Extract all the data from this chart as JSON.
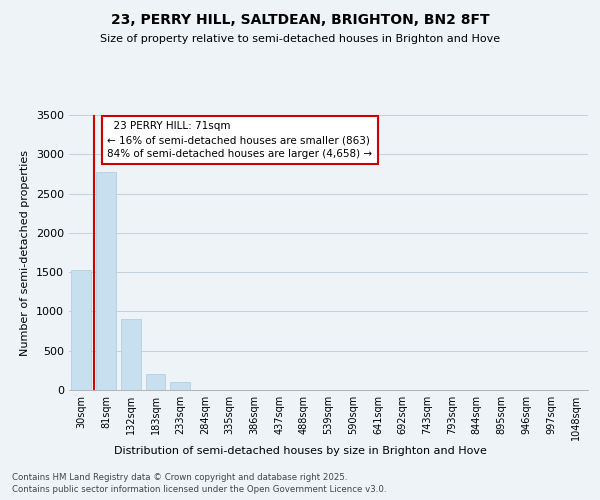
{
  "title": "23, PERRY HILL, SALTDEAN, BRIGHTON, BN2 8FT",
  "subtitle": "Size of property relative to semi-detached houses in Brighton and Hove",
  "xlabel": "Distribution of semi-detached houses by size in Brighton and Hove",
  "ylabel": "Number of semi-detached properties",
  "categories": [
    "30sqm",
    "81sqm",
    "132sqm",
    "183sqm",
    "233sqm",
    "284sqm",
    "335sqm",
    "386sqm",
    "437sqm",
    "488sqm",
    "539sqm",
    "590sqm",
    "641sqm",
    "692sqm",
    "743sqm",
    "793sqm",
    "844sqm",
    "895sqm",
    "946sqm",
    "997sqm",
    "1048sqm"
  ],
  "values": [
    1530,
    2770,
    900,
    205,
    100,
    0,
    0,
    0,
    0,
    0,
    0,
    0,
    0,
    0,
    0,
    0,
    0,
    0,
    0,
    0,
    0
  ],
  "bar_color": "#c8dff0",
  "property_label": "23 PERRY HILL: 71sqm",
  "pct_smaller": 16,
  "pct_larger": 84,
  "n_smaller": 863,
  "n_larger": 4658,
  "red_line_x": 0.5,
  "ylim": [
    0,
    3500
  ],
  "yticks": [
    0,
    500,
    1000,
    1500,
    2000,
    2500,
    3000,
    3500
  ],
  "footer_line1": "Contains HM Land Registry data © Crown copyright and database right 2025.",
  "footer_line2": "Contains public sector information licensed under the Open Government Licence v3.0.",
  "background_color": "#eef3f8",
  "plot_bg_color": "#eef3f8"
}
